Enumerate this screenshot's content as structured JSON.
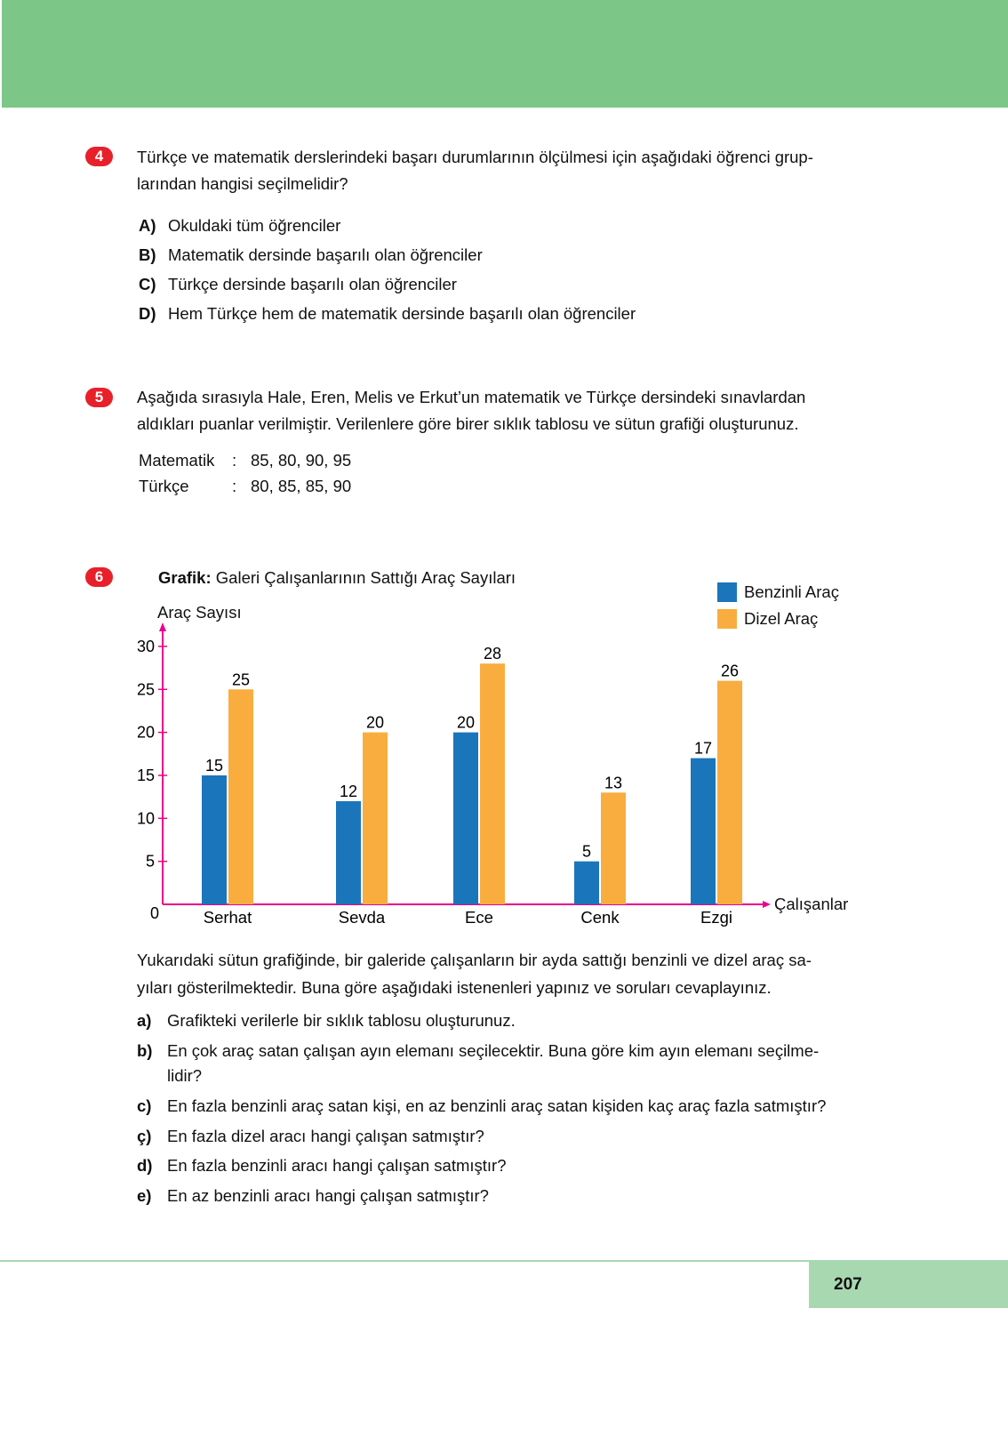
{
  "header": {
    "band_color": "#7cc788"
  },
  "q4": {
    "number": "4",
    "text_line1": "Türkçe ve matematik derslerindeki başarı durumlarının ölçülmesi için aşağıdaki öğrenci grup-",
    "text_line2": "larından hangisi seçilmelidir?",
    "options": [
      {
        "letter": "A)",
        "text": "Okuldaki tüm öğrenciler"
      },
      {
        "letter": "B)",
        "text": "Matematik dersinde başarılı olan öğrenciler"
      },
      {
        "letter": "C)",
        "text": "Türkçe dersinde başarılı olan öğrenciler"
      },
      {
        "letter": "D)",
        "text": "Hem Türkçe hem de matematik dersinde başarılı olan öğrenciler"
      }
    ]
  },
  "q5": {
    "number": "5",
    "text_line1": "Aşağıda sırasıyla Hale, Eren, Melis ve Erkut’un matematik ve Türkçe dersindeki sınavlardan",
    "text_line2": "aldıkları puanlar verilmiştir. Verilenlere göre birer sıklık tablosu ve sütun grafiği oluşturunuz.",
    "rows": [
      {
        "label": "Matematik",
        "sep": ":",
        "values": "85, 80, 90, 95"
      },
      {
        "label": "Türkçe",
        "sep": ":",
        "values": "80, 85, 85, 90"
      }
    ]
  },
  "q6": {
    "number": "6",
    "title_bold": "Grafik:",
    "title_rest": "Galeri Çalışanlarının Sattığı Araç Sayıları",
    "text_line1": "Yukarıdaki sütun grafiğinde, bir galeride çalışanların bir ayda sattığı benzinli ve dizel araç sa-",
    "text_line2": "yıları gösterilmektedir. Buna göre aşağıdaki istenenleri yapınız ve soruları cevaplayınız.",
    "items": [
      {
        "letter": "a)",
        "lines": [
          "Grafikteki verilerle bir sıklık tablosu oluşturunuz."
        ]
      },
      {
        "letter": "b)",
        "lines": [
          "En çok araç satan çalışan ayın elemanı seçilecektir. Buna göre kim ayın elemanı seçilme-",
          "lidir?"
        ]
      },
      {
        "letter": "c)",
        "lines": [
          "En fazla benzinli araç satan kişi, en az benzinli araç satan kişiden kaç araç fazla satmıştır?"
        ]
      },
      {
        "letter": "ç)",
        "lines": [
          "En fazla dizel aracı hangi çalışan satmıştır?"
        ]
      },
      {
        "letter": "d)",
        "lines": [
          "En fazla benzinli aracı hangi çalışan satmıştır?"
        ]
      },
      {
        "letter": "e)",
        "lines": [
          "En az benzinli aracı hangi çalışan satmıştır?"
        ]
      }
    ]
  },
  "chart_data": {
    "type": "bar",
    "title": "Grafik: Galeri Çalışanlarının Sattığı Araç Sayıları",
    "ylabel": "Araç Sayısı",
    "xlabel": "Çalışanlar",
    "categories": [
      "Serhat",
      "Sevda",
      "Ece",
      "Cenk",
      "Ezgi"
    ],
    "series": [
      {
        "name": "Benzinli Araç",
        "color": "#1b75bb",
        "values": [
          15,
          12,
          20,
          5,
          17
        ]
      },
      {
        "name": "Dizel Araç",
        "color": "#f9ad3f",
        "values": [
          25,
          20,
          28,
          13,
          26
        ]
      }
    ],
    "ylim": [
      0,
      30
    ],
    "yticks": [
      0,
      5,
      10,
      15,
      20,
      25,
      30
    ],
    "axis_color": "#ec008c",
    "grid": false,
    "legend": "top-right"
  },
  "footer": {
    "page_number": "207",
    "color": "#a8d8b0"
  }
}
